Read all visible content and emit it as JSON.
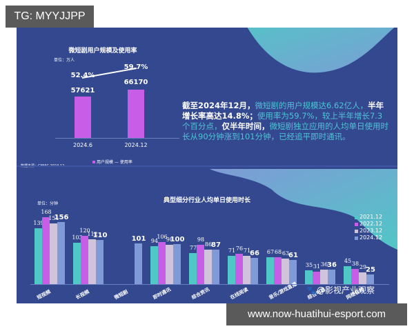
{
  "watermarks": {
    "top": "TG: MYYJJPP",
    "bottom": "www.now-huatihui-esport.com",
    "weibo": "@影视产业观察"
  },
  "colors": {
    "background": "#33488f",
    "series": [
      "#4fc8c6",
      "#c85ee8",
      "#cfc4dc",
      "#7f9ad6"
    ],
    "highlight_text": "#4fc3d6"
  },
  "summary": {
    "p1": "截至2024年12月，",
    "p2": "微短剧的用户规模达6.62亿人，",
    "p3": "半年增长率高达14.8%；",
    "p4": "使用率为59.7%，较上半年增长7.3个百分点，",
    "p5": "仅半年时间，",
    "p6": "微短剧独立应用的人均单日使用时长从90分钟涨到101分钟，已经追平即时通讯。"
  },
  "chart_data": [
    {
      "type": "bar",
      "title": "微短剧用户规模及使用率",
      "unit": "单位：万人",
      "categories": [
        "2024.6",
        "2024.12"
      ],
      "series": [
        {
          "name": "用户规模",
          "values": [
            57621,
            66170
          ]
        },
        {
          "name": "使用率",
          "values": [
            "52.4%",
            "59.7%"
          ],
          "kind": "line"
        }
      ],
      "legend": [
        "用户规模",
        "使用率"
      ],
      "source": "数据来源：CNNIC 2024.12"
    },
    {
      "type": "bar",
      "title": "典型细分行业人均单日使用时长",
      "unit": "单位：分钟",
      "categories": [
        "短视频",
        "长视频",
        "微短剧",
        "即时通讯",
        "综合资讯",
        "在线阅读",
        "音乐/游戏直播",
        "综合电商",
        "网络音频"
      ],
      "series": [
        {
          "name": "2021.12",
          "values": [
            139,
            103,
            null,
            94,
            77,
            71,
            67,
            35,
            45
          ]
        },
        {
          "name": "2022.12",
          "values": [
            168,
            120,
            null,
            106,
            98,
            76,
            68,
            31,
            38
          ]
        },
        {
          "name": "2023.12",
          "values": [
            151,
            112,
            null,
            98,
            86,
            71,
            63,
            36,
            29
          ]
        },
        {
          "name": "2024.12",
          "values": [
            156,
            110,
            101,
            100,
            87,
            66,
            61,
            36,
            25
          ]
        }
      ],
      "legend": [
        "2021.12",
        "2022.12",
        "2023.12",
        "2024.12"
      ],
      "ylim": [
        0,
        180
      ]
    }
  ]
}
